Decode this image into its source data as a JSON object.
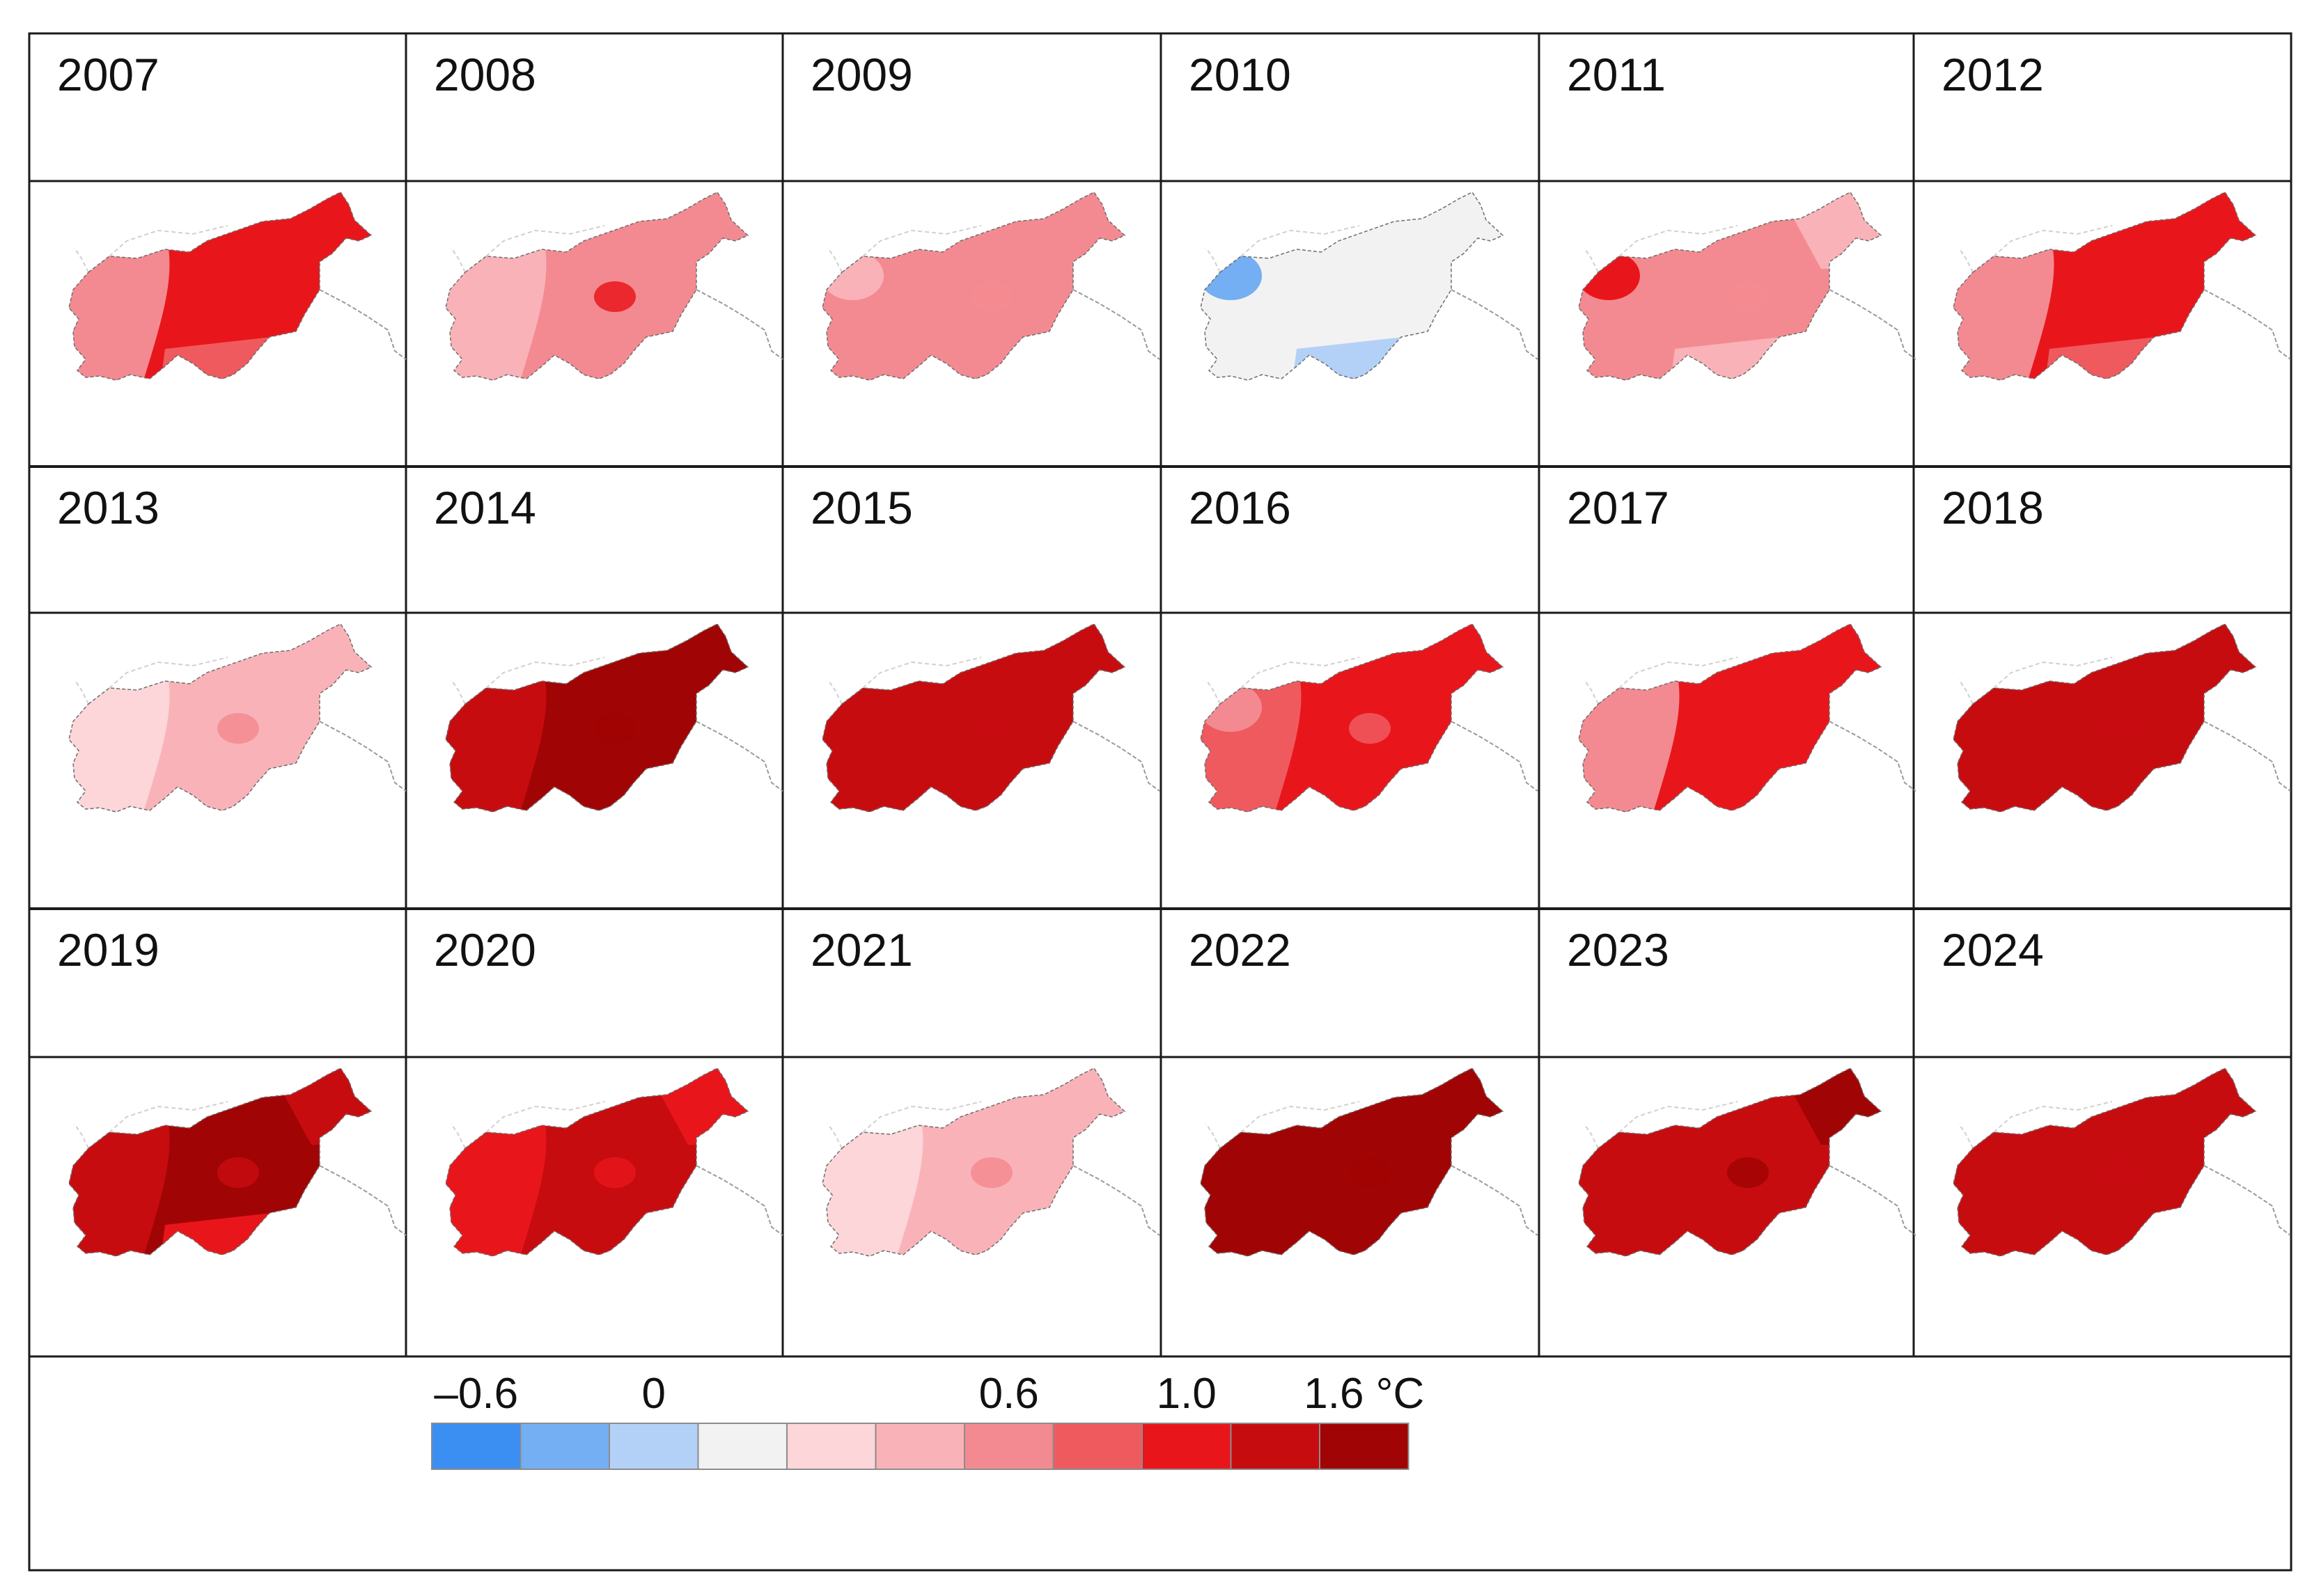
{
  "maps": [
    {
      "year": "2007",
      "base": 8,
      "west": 6,
      "wpatch": 6,
      "north": 8,
      "south": 7,
      "hot": 8
    },
    {
      "year": "2008",
      "base": 6,
      "west": 5,
      "wpatch": 5,
      "north": 6,
      "south": 6,
      "hot": 8
    },
    {
      "year": "2009",
      "base": 6,
      "west": 6,
      "wpatch": 5,
      "north": 6,
      "south": 6,
      "hot": 6
    },
    {
      "year": "2010",
      "base": 3,
      "west": 3,
      "wpatch": 1,
      "north": 3,
      "south": 2,
      "hot": 3
    },
    {
      "year": "2011",
      "base": 6,
      "west": 6,
      "wpatch": 8,
      "north": 5,
      "south": 5,
      "hot": 6
    },
    {
      "year": "2012",
      "base": 8,
      "west": 6,
      "wpatch": 6,
      "north": 8,
      "south": 7,
      "hot": 8
    },
    {
      "year": "2013",
      "base": 5,
      "west": 4,
      "wpatch": 4,
      "north": 5,
      "south": 5,
      "hot": 6
    },
    {
      "year": "2014",
      "base": 10,
      "west": 9,
      "wpatch": 9,
      "north": 10,
      "south": 10,
      "hot": 10
    },
    {
      "year": "2015",
      "base": 9,
      "west": 9,
      "wpatch": 9,
      "north": 9,
      "south": 9,
      "hot": 9
    },
    {
      "year": "2016",
      "base": 8,
      "west": 7,
      "wpatch": 6,
      "north": 8,
      "south": 8,
      "hot": 7
    },
    {
      "year": "2017",
      "base": 8,
      "west": 6,
      "wpatch": 6,
      "north": 8,
      "south": 8,
      "hot": 8
    },
    {
      "year": "2018",
      "base": 9,
      "west": 9,
      "wpatch": 9,
      "north": 9,
      "south": 9,
      "hot": 9
    },
    {
      "year": "2019",
      "base": 10,
      "west": 9,
      "wpatch": 9,
      "north": 9,
      "south": 8,
      "hot": 9
    },
    {
      "year": "2020",
      "base": 9,
      "west": 8,
      "wpatch": 8,
      "north": 8,
      "south": 9,
      "hot": 8
    },
    {
      "year": "2021",
      "base": 5,
      "west": 4,
      "wpatch": 4,
      "north": 5,
      "south": 5,
      "hot": 6
    },
    {
      "year": "2022",
      "base": 10,
      "west": 10,
      "wpatch": 10,
      "north": 10,
      "south": 10,
      "hot": 10
    },
    {
      "year": "2023",
      "base": 9,
      "west": 9,
      "wpatch": 9,
      "north": 10,
      "south": 9,
      "hot": 10
    },
    {
      "year": "2024",
      "base": 9,
      "west": 9,
      "wpatch": 9,
      "north": 9,
      "south": 9,
      "hot": 9
    }
  ],
  "legend": {
    "labels": [
      {
        "text": "–0.6",
        "boundary": 0
      },
      {
        "text": "0",
        "boundary": 2
      },
      {
        "text": "0.6",
        "boundary": 6
      },
      {
        "text": "1.0",
        "boundary": 8
      },
      {
        "text": "1.6 °C",
        "boundary": 10
      }
    ],
    "colors": [
      "#3b8ef2",
      "#74aef3",
      "#b3d1f7",
      "#f2f2f2",
      "#fcd6d9",
      "#f9b3b8",
      "#f48a91",
      "#ef5a5f",
      "#e8161b",
      "#c70c10",
      "#a10404"
    ]
  }
}
